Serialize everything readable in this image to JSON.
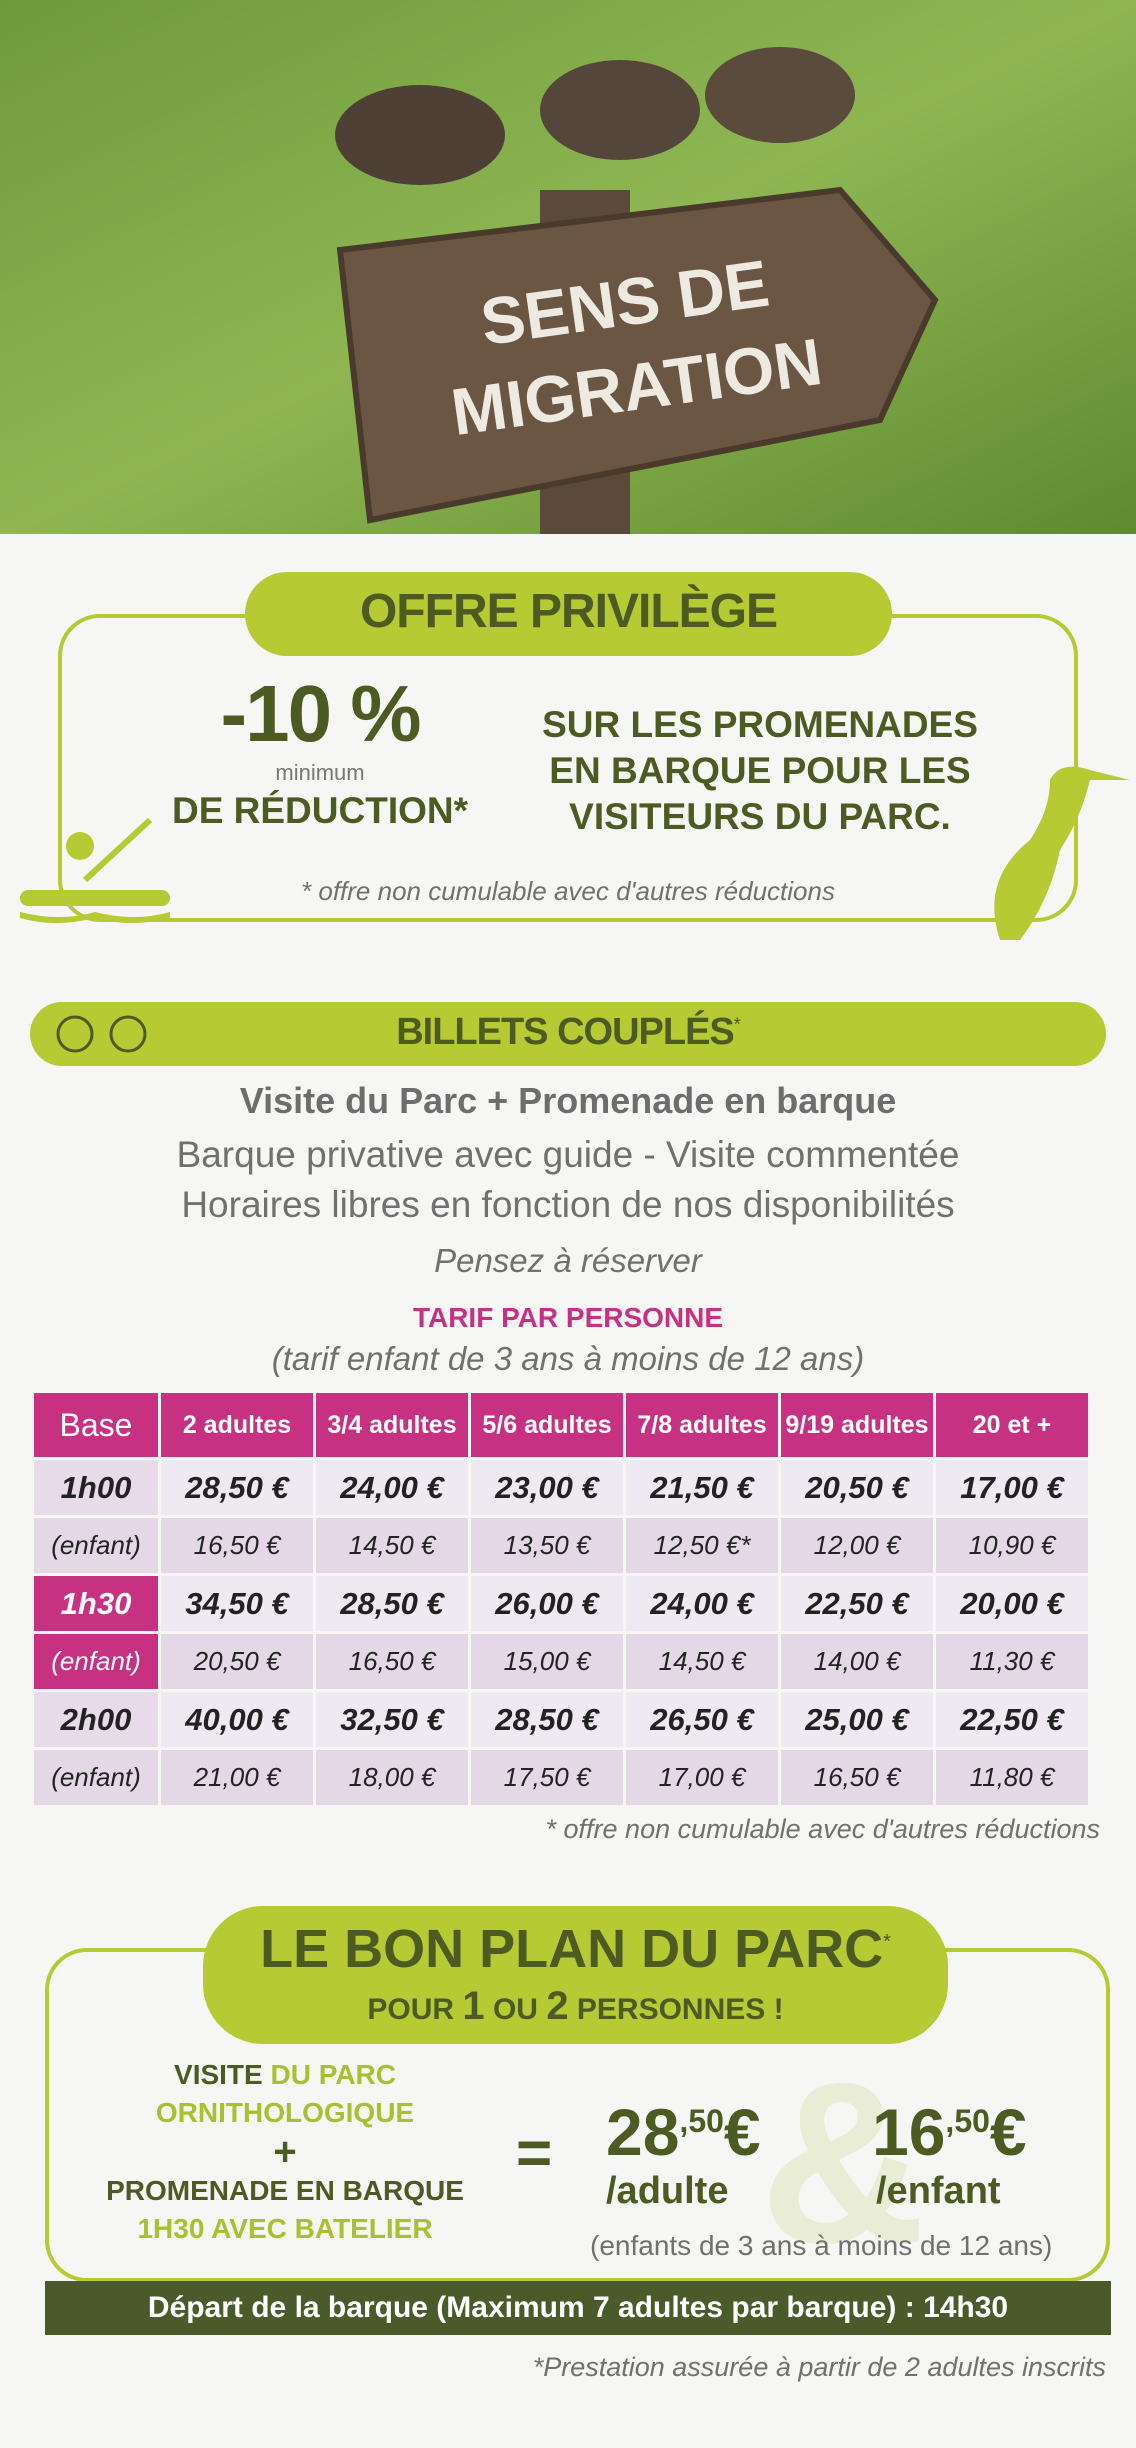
{
  "photo": {
    "sign": [
      "SENS DE",
      "MIGRATION"
    ]
  },
  "offer": {
    "title": "OFFRE PRIVILÈGE",
    "discount": "-10 %",
    "minimum": "minimum",
    "reduction": "DE RÉDUCTION*",
    "description": [
      "SUR LES PROMENADES",
      "EN BARQUE POUR LES",
      "VISITEURS DU PARC."
    ],
    "note": "* offre non cumulable avec d'autres réductions"
  },
  "billets": {
    "title": "BILLETS COUPLÉS",
    "asterisk": "*",
    "headline": "Visite du Parc + Promenade en barque",
    "lines": [
      "Barque privative avec guide - Visite commentée",
      "Horaires libres en fonction de nos disponibilités"
    ],
    "reserve": "Pensez à réserver",
    "tarif_title": "TARIF PAR PERSONNE",
    "tarif_note": "(tarif enfant de 3 ans à moins de 12 ans)"
  },
  "table": {
    "header": [
      "Base",
      "2 adultes",
      "3/4 adultes",
      "5/6 adultes",
      "7/8 adultes",
      "9/19 adultes",
      "20 et +"
    ],
    "rows": [
      [
        "1h00",
        "28,50 €",
        "24,00 €",
        "23,00 €",
        "21,50 €",
        "20,50 €",
        "17,00 €"
      ],
      [
        "(enfant)",
        "16,50 €",
        "14,50 €",
        "13,50 €",
        "12,50 €*",
        "12,00 €",
        "10,90 €"
      ],
      [
        "1h30",
        "34,50 €",
        "28,50 €",
        "26,00 €",
        "24,00 €",
        "22,50 €",
        "20,00 €"
      ],
      [
        "(enfant)",
        "20,50 €",
        "16,50 €",
        "15,00 €",
        "14,50 €",
        "14,00 €",
        "11,30 €"
      ],
      [
        "2h00",
        "40,00 €",
        "32,50 €",
        "28,50 €",
        "26,50 €",
        "25,00 €",
        "22,50 €"
      ],
      [
        "(enfant)",
        "21,00 €",
        "18,00 €",
        "17,50 €",
        "17,00 €",
        "16,50 €",
        "11,80 €"
      ]
    ],
    "note": "* offre non cumulable avec d'autres réductions"
  },
  "bon_plan": {
    "title": "LE BON PLAN DU PARC",
    "asterisk": "*",
    "subtitle": [
      "POUR ",
      "1",
      " OU ",
      "2",
      " PERSONNES !"
    ],
    "visite": "VISITE",
    "du_parc": " DU PARC",
    "ornitho": "ORNITHOLOGIQUE",
    "plus": "+",
    "promenade": "PROMENADE EN BARQUE",
    "batelier": "1H30 AVEC BATELIER",
    "equals": "=",
    "and": "&",
    "adult_price": [
      "28",
      ",50",
      "€"
    ],
    "adult_label": "/adulte",
    "child_price": [
      "16",
      ",50",
      "€"
    ],
    "child_label": "/enfant",
    "age_note": "(enfants de 3 ans à moins de 12 ans)",
    "departure": "Départ de la barque (Maximum 7 adultes par barque) : 14h30"
  },
  "footer": "*Prestation assurée à partir de 2 adultes inscrits"
}
